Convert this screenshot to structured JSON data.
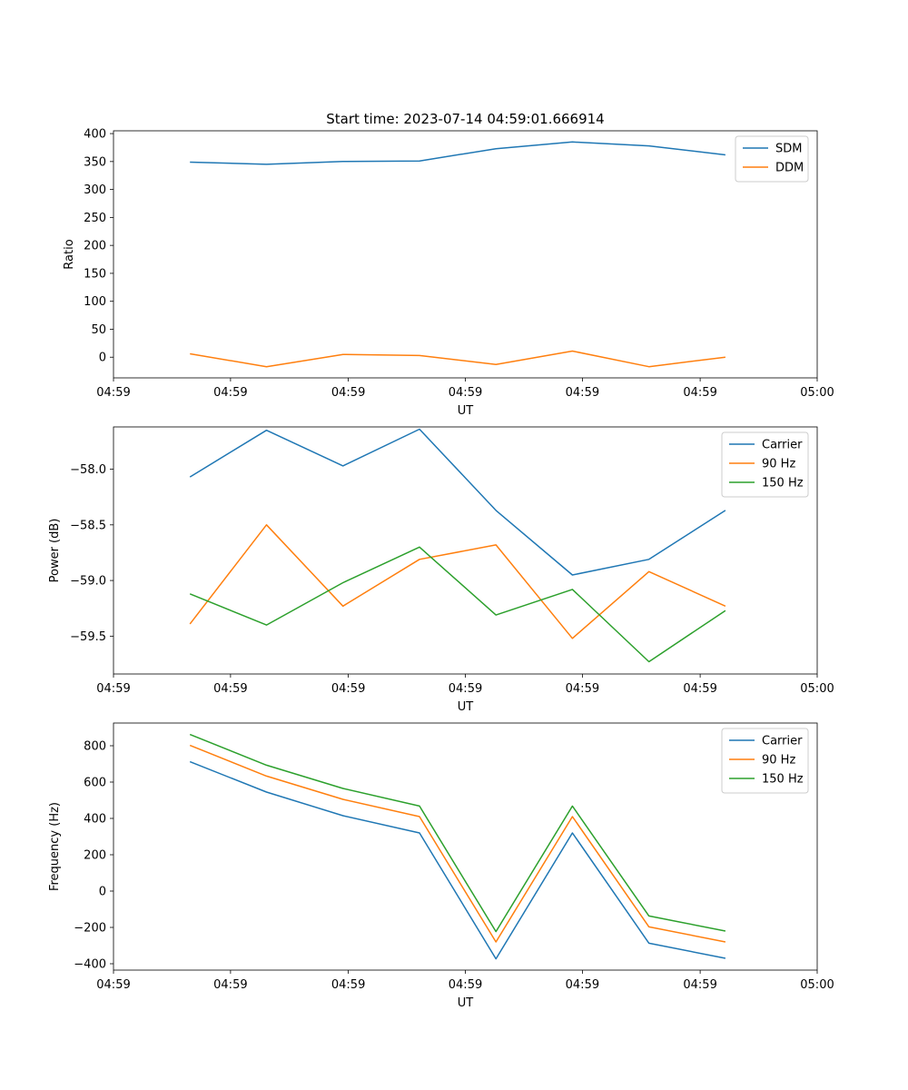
{
  "figure": {
    "title": "Start time: 2023-07-14 04:59:01.666914"
  },
  "colors": {
    "blue": "#1f77b4",
    "orange": "#ff7f0e",
    "green": "#2ca02c"
  },
  "chart_data": [
    {
      "type": "line",
      "title": "Start time: 2023-07-14 04:59:01.666914",
      "xlabel": "UT",
      "ylabel": "Ratio",
      "x": [
        1,
        2,
        3,
        4,
        5,
        6,
        7,
        8
      ],
      "xlim": [
        0,
        9.2
      ],
      "x_ticks": [
        0,
        1.53,
        3.07,
        4.6,
        6.13,
        7.67,
        9.2
      ],
      "x_tick_labels": [
        "04:59",
        "04:59",
        "04:59",
        "04:59",
        "04:59",
        "04:59",
        "05:00"
      ],
      "ylim": [
        -37,
        405
      ],
      "y_ticks": [
        0,
        50,
        100,
        150,
        200,
        250,
        300,
        350,
        400
      ],
      "y_tick_labels": [
        "0",
        "50",
        "100",
        "150",
        "200",
        "250",
        "300",
        "350",
        "400"
      ],
      "legend_position": "top-right",
      "series": [
        {
          "name": "SDM",
          "color": "#1f77b4",
          "values": [
            349,
            345,
            350,
            351,
            373,
            385,
            378,
            362
          ]
        },
        {
          "name": "DDM",
          "color": "#ff7f0e",
          "values": [
            6,
            -17,
            5,
            3,
            -13,
            11,
            -17,
            0
          ]
        }
      ]
    },
    {
      "type": "line",
      "title": "",
      "xlabel": "UT",
      "ylabel": "Power (dB)",
      "x": [
        1,
        2,
        3,
        4,
        5,
        6,
        7,
        8
      ],
      "xlim": [
        0,
        9.2
      ],
      "x_ticks": [
        0,
        1.53,
        3.07,
        4.6,
        6.13,
        7.67,
        9.2
      ],
      "x_tick_labels": [
        "04:59",
        "04:59",
        "04:59",
        "04:59",
        "04:59",
        "04:59",
        "05:00"
      ],
      "ylim": [
        -59.84,
        -57.62
      ],
      "y_ticks": [
        -58.0,
        -58.5,
        -59.0,
        -59.5
      ],
      "y_tick_labels": [
        "−58.0",
        "−58.5",
        "−59.0",
        "−59.5"
      ],
      "legend_position": "top-right",
      "series": [
        {
          "name": "Carrier",
          "color": "#1f77b4",
          "values": [
            -58.07,
            -57.65,
            -57.97,
            -57.64,
            -58.37,
            -58.95,
            -58.81,
            -58.37
          ]
        },
        {
          "name": "90 Hz",
          "color": "#ff7f0e",
          "values": [
            -59.39,
            -58.5,
            -59.23,
            -58.81,
            -58.68,
            -59.52,
            -58.92,
            -59.23
          ]
        },
        {
          "name": "150 Hz",
          "color": "#2ca02c",
          "values": [
            -59.12,
            -59.4,
            -59.02,
            -58.7,
            -59.31,
            -59.08,
            -59.73,
            -59.27
          ]
        }
      ]
    },
    {
      "type": "line",
      "title": "",
      "xlabel": "UT",
      "ylabel": "Frequency (Hz)",
      "x": [
        1,
        2,
        3,
        4,
        5,
        6,
        7,
        8
      ],
      "xlim": [
        0,
        9.2
      ],
      "x_ticks": [
        0,
        1.53,
        3.07,
        4.6,
        6.13,
        7.67,
        9.2
      ],
      "x_tick_labels": [
        "04:59",
        "04:59",
        "04:59",
        "04:59",
        "04:59",
        "04:59",
        "05:00"
      ],
      "ylim": [
        -435,
        925
      ],
      "y_ticks": [
        800,
        600,
        400,
        200,
        0,
        -200,
        -400
      ],
      "y_tick_labels": [
        "800",
        "600",
        "400",
        "200",
        "0",
        "−200",
        "−400"
      ],
      "legend_position": "top-right",
      "series": [
        {
          "name": "Carrier",
          "color": "#1f77b4",
          "values": [
            712,
            545,
            415,
            320,
            -373,
            320,
            -287,
            -370
          ]
        },
        {
          "name": "90 Hz",
          "color": "#ff7f0e",
          "values": [
            802,
            633,
            505,
            410,
            -280,
            410,
            -197,
            -280
          ]
        },
        {
          "name": "150 Hz",
          "color": "#2ca02c",
          "values": [
            862,
            693,
            565,
            468,
            -223,
            468,
            -137,
            -220
          ]
        }
      ]
    }
  ]
}
